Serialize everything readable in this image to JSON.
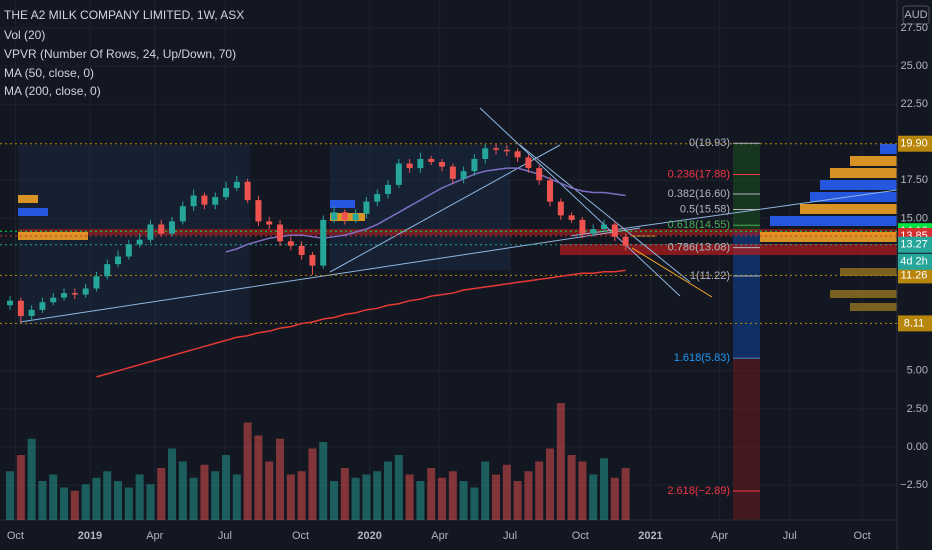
{
  "chart_data": {
    "type": "candlestick",
    "title": "THE A2 MILK COMPANY LIMITED, 1W, ASX",
    "indicators": [
      "Vol (20)",
      "VPVR (Number Of Rows, 24, Up/Down, 70)"
    ],
    "currency": "AUD",
    "ylim": [
      -4.79,
      29.33
    ],
    "yticks": [
      {
        "value": 27.5,
        "label": "27.50"
      },
      {
        "value": 25,
        "label": "25.00"
      },
      {
        "value": 22.5,
        "label": "22.50"
      },
      {
        "value": 17.5,
        "label": "17.50"
      },
      {
        "value": 15,
        "label": "15.00"
      },
      {
        "value": 5,
        "label": "5.00"
      },
      {
        "value": 2.5,
        "label": "2.50"
      },
      {
        "value": 0,
        "label": "0.00"
      },
      {
        "value": -2.5,
        "label": "−2.50"
      }
    ],
    "xlim": [
      -0.93,
      82.13
    ],
    "xticks": [
      {
        "value": 0.5,
        "label": "Oct"
      },
      {
        "value": 7.4,
        "label": "2019"
      },
      {
        "value": 13.4,
        "label": "Apr"
      },
      {
        "value": 19.9,
        "label": "Jul"
      },
      {
        "value": 26.9,
        "label": "Oct"
      },
      {
        "value": 33.3,
        "label": "2020"
      },
      {
        "value": 39.8,
        "label": "Apr"
      },
      {
        "value": 46.3,
        "label": "Jul"
      },
      {
        "value": 52.8,
        "label": "Oct"
      },
      {
        "value": 59.3,
        "label": "2021"
      },
      {
        "value": 65.7,
        "label": "Apr"
      },
      {
        "value": 72.2,
        "label": "Jul"
      },
      {
        "value": 78.9,
        "label": "Oct"
      }
    ],
    "up_color": "#26a69a",
    "down_color": "#ef5350",
    "open": [
      9.3,
      9.6,
      8.6,
      9.0,
      9.5,
      9.8,
      10.1,
      10.0,
      10.4,
      11.2,
      12.0,
      12.5,
      13.3,
      13.6,
      14.6,
      14.0,
      14.8,
      15.8,
      16.5,
      15.9,
      16.4,
      17.0,
      17.4,
      16.2,
      14.8,
      14.6,
      13.5,
      13.2,
      12.6,
      11.9,
      14.9,
      15.4,
      14.9,
      15.3,
      16.1,
      16.6,
      17.2,
      18.6,
      18.3,
      18.9,
      18.7,
      18.4,
      17.6,
      18.1,
      18.9,
      19.6,
      19.5,
      19.4,
      19.0,
      18.3,
      17.5,
      16.1,
      15.2,
      14.9,
      14.0,
      14.3,
      14.6,
      13.8
    ],
    "high": [
      9.9,
      9.8,
      9.3,
      9.8,
      10.1,
      10.4,
      10.4,
      10.7,
      11.5,
      12.3,
      12.9,
      13.6,
      14.0,
      14.9,
      14.9,
      15.1,
      16.1,
      16.9,
      16.7,
      16.7,
      17.4,
      17.8,
      17.6,
      16.5,
      15.1,
      14.9,
      13.8,
      13.5,
      12.8,
      15.2,
      15.8,
      15.6,
      15.6,
      16.4,
      16.9,
      17.5,
      18.9,
      18.9,
      19.3,
      19.1,
      18.9,
      18.6,
      18.4,
      19.2,
      19.9,
      19.9,
      19.8,
      19.6,
      19.2,
      18.5,
      17.7,
      16.3,
      15.4,
      15.1,
      14.6,
      14.9,
      14.8,
      14.0
    ],
    "low": [
      9.0,
      8.2,
      8.3,
      8.8,
      9.3,
      9.6,
      9.7,
      9.8,
      10.2,
      11.0,
      11.8,
      12.3,
      13.1,
      13.4,
      13.8,
      13.8,
      14.6,
      15.5,
      15.6,
      15.6,
      16.2,
      16.8,
      16.0,
      14.5,
      14.3,
      13.2,
      12.9,
      12.3,
      11.3,
      11.7,
      14.7,
      14.6,
      14.7,
      15.0,
      15.8,
      16.3,
      17.0,
      18.0,
      18.0,
      18.5,
      18.1,
      17.3,
      17.3,
      17.8,
      18.6,
      19.2,
      19.1,
      18.7,
      18.0,
      17.2,
      15.8,
      14.9,
      14.7,
      13.7,
      13.8,
      14.1,
      13.5,
      12.9
    ],
    "close": [
      9.6,
      8.6,
      9.0,
      9.5,
      9.8,
      10.1,
      10.0,
      10.4,
      11.2,
      12.0,
      12.5,
      13.3,
      13.6,
      14.6,
      14.0,
      14.8,
      15.8,
      16.5,
      15.9,
      16.4,
      17.0,
      17.4,
      16.2,
      14.8,
      14.6,
      13.5,
      13.2,
      12.6,
      11.9,
      14.9,
      15.4,
      14.9,
      15.3,
      16.1,
      16.6,
      17.2,
      18.6,
      18.3,
      18.9,
      18.7,
      18.4,
      17.6,
      18.1,
      18.9,
      19.6,
      19.5,
      19.4,
      19.0,
      18.3,
      17.5,
      16.1,
      15.2,
      14.9,
      14.0,
      14.3,
      14.6,
      13.8,
      13.2
    ],
    "volume": [
      15,
      20,
      25,
      12,
      14,
      10,
      9,
      11,
      13,
      15,
      12,
      10,
      14,
      11,
      16,
      22,
      18,
      13,
      17,
      15,
      20,
      14,
      30,
      26,
      18,
      25,
      14,
      15,
      22,
      24,
      12,
      16,
      13,
      14,
      15,
      18,
      20,
      14,
      12,
      16,
      13,
      15,
      12,
      10,
      18,
      14,
      17,
      12,
      15,
      18,
      22,
      36,
      20,
      18,
      14,
      19,
      13,
      16
    ],
    "volume_lim": [
      0,
      40
    ],
    "series": [
      {
        "name": "MA (50, close, 0)",
        "color": "#7e6fc4",
        "values": [
          null,
          null,
          null,
          null,
          null,
          null,
          null,
          null,
          null,
          null,
          null,
          null,
          null,
          null,
          null,
          null,
          null,
          null,
          null,
          null,
          12.8,
          13.0,
          13.3,
          13.5,
          13.7,
          13.8,
          13.9,
          13.9,
          13.8,
          13.7,
          13.8,
          13.9,
          14.1,
          14.3,
          14.6,
          15.0,
          15.4,
          15.8,
          16.2,
          16.6,
          17.0,
          17.3,
          17.6,
          17.9,
          18.1,
          18.2,
          18.3,
          18.3,
          18.1,
          17.9,
          17.6,
          17.3,
          17.0,
          16.8,
          16.7,
          16.7,
          16.6,
          16.5
        ]
      },
      {
        "name": "MA (200, close, 0)",
        "color": "#e53935",
        "values": [
          null,
          null,
          null,
          null,
          null,
          null,
          null,
          null,
          4.6,
          4.8,
          5.0,
          5.2,
          5.4,
          5.6,
          5.8,
          6.0,
          6.2,
          6.4,
          6.6,
          6.8,
          7.0,
          7.2,
          7.3,
          7.5,
          7.6,
          7.8,
          7.9,
          8.1,
          8.2,
          8.4,
          8.5,
          8.7,
          8.8,
          9.0,
          9.1,
          9.3,
          9.4,
          9.6,
          9.7,
          9.9,
          10.0,
          10.1,
          10.3,
          10.4,
          10.5,
          10.6,
          10.7,
          10.8,
          10.9,
          11.0,
          11.1,
          11.2,
          11.3,
          11.4,
          11.4,
          11.5,
          11.5,
          11.6
        ]
      }
    ],
    "fib_levels": [
      {
        "value": 19.93,
        "label": "0(19.93)",
        "color": "#b2b5be"
      },
      {
        "value": 17.88,
        "label": "0.236(17.88)",
        "color": "#f23645"
      },
      {
        "value": 16.6,
        "label": "0.382(16.60)",
        "color": "#b2b5be"
      },
      {
        "value": 15.58,
        "label": "0.5(15.58)",
        "color": "#b2b5be"
      },
      {
        "value": 14.55,
        "label": "0.618(14.55)",
        "color": "#4caf50"
      },
      {
        "value": 13.08,
        "label": "0.786(13.08)",
        "color": "#b2b5be"
      },
      {
        "value": 11.22,
        "label": "1(11.22)",
        "color": "#b2b5be"
      },
      {
        "value": 5.83,
        "label": "1.618(5.83)",
        "color": "#2196f3"
      },
      {
        "value": -2.89,
        "label": "2.618(−2.89)",
        "color": "#f23645"
      }
    ],
    "price_labels": [
      {
        "value": 19.9,
        "label": "19.90",
        "color": "#b8860b"
      },
      {
        "value": 14.16,
        "label": "14.16",
        "color": "#00e640"
      },
      {
        "value": 13.85,
        "label": "13.85",
        "color": "#d32f2f"
      },
      {
        "value": 13.27,
        "label": "13.27",
        "color": "#26a69a"
      },
      {
        "value": 11.26,
        "label": "11.26",
        "color": "#b8860b"
      },
      {
        "value": 8.11,
        "label": "8.11",
        "color": "#b8860b"
      }
    ],
    "countdown": "4d 2h"
  }
}
